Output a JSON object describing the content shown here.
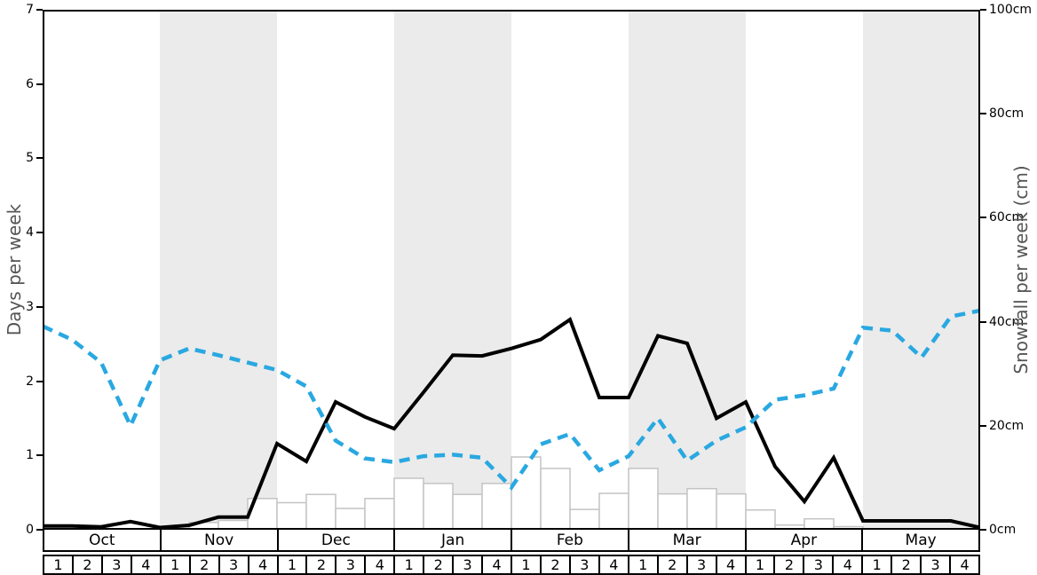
{
  "chart_data": {
    "type": "composite",
    "title": "",
    "months": [
      "Oct",
      "Nov",
      "Dec",
      "Jan",
      "Feb",
      "Mar",
      "Apr",
      "May"
    ],
    "weeks_per_month": [
      "1",
      "2",
      "3",
      "4"
    ],
    "shaded_month_indices": [
      1,
      3,
      5,
      7
    ],
    "left_axis": {
      "label": "Days per week",
      "ticks": [
        0,
        1,
        2,
        3,
        4,
        5,
        6,
        7
      ],
      "range": [
        0,
        7
      ]
    },
    "right_axis": {
      "label": "Snowfall per week (cm)",
      "ticks": [
        "0cm",
        "20cm",
        "40cm",
        "60cm",
        "80cm",
        "100cm"
      ],
      "tick_values": [
        0,
        20,
        40,
        60,
        80,
        100
      ],
      "range": [
        0,
        100
      ]
    },
    "series": [
      {
        "name": "snowfall-bars",
        "type": "bar",
        "axis": "right",
        "unit": "cm",
        "values": [
          0,
          0,
          0,
          0,
          0,
          1.4,
          1.8,
          6.0,
          5.2,
          6.8,
          4.1,
          6.0,
          9.9,
          8.9,
          6.8,
          8.9,
          14.0,
          11.8,
          3.9,
          7.0,
          11.8,
          6.9,
          7.9,
          6.9,
          3.8,
          0.9,
          2.1,
          0.6,
          0,
          0,
          0,
          0
        ],
        "style": {
          "fill": "#ffffff",
          "stroke": "#c4c4c4",
          "stroke_width": 1.5
        }
      },
      {
        "name": "days-line-black",
        "type": "line",
        "axis": "left",
        "unit": "days",
        "values": [
          0.05,
          0.05,
          0.04,
          0.11,
          0.03,
          0.06,
          0.17,
          0.17,
          1.16,
          0.92,
          1.72,
          1.52,
          1.36,
          1.85,
          2.35,
          2.34,
          2.44,
          2.56,
          2.83,
          1.78,
          1.78,
          2.61,
          2.51,
          1.5,
          1.72,
          0.85,
          0.38,
          0.97,
          0.12,
          0.12,
          0.12,
          0.12,
          0.03
        ],
        "style": {
          "color": "#000000",
          "dash": "solid",
          "width": 4
        }
      },
      {
        "name": "days-line-blue-dashed",
        "type": "line",
        "axis": "left",
        "unit": "days",
        "values": [
          2.74,
          2.56,
          2.25,
          1.4,
          2.28,
          2.44,
          2.35,
          2.25,
          2.15,
          1.93,
          1.2,
          0.96,
          0.91,
          0.99,
          1.01,
          0.97,
          0.57,
          1.15,
          1.29,
          0.8,
          0.99,
          1.5,
          0.93,
          1.2,
          1.38,
          1.75,
          1.81,
          1.9,
          2.72,
          2.68,
          2.32,
          2.87,
          2.95
        ],
        "style": {
          "color": "#29a8e1",
          "dash": "12 8",
          "width": 4.5
        }
      }
    ],
    "colors": {
      "band": "#ebebeb",
      "axis": "#000000",
      "axis_title": "#555555",
      "bar_fill": "#ffffff",
      "bar_stroke": "#c4c4c4"
    },
    "legend": "none",
    "grid": "off"
  }
}
